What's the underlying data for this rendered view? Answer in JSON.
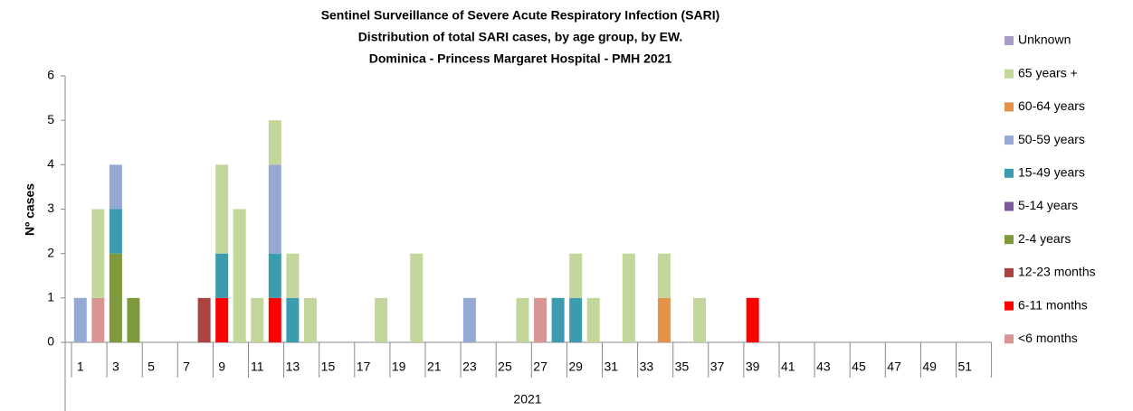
{
  "chart_data": {
    "type": "stacked_bar",
    "title": "Sentinel Surveillance of Severe Acute Respiratory Infection (SARI)",
    "subtitle": "Distribution of total SARI cases, by age group, by EW.",
    "subtitle2": "Dominica - Princess Margaret Hospital - PMH  2021",
    "ylabel": "Nº cases",
    "xlabel": "2021",
    "ylim": [
      0,
      6
    ],
    "yticks": [
      0,
      1,
      2,
      3,
      4,
      5,
      6
    ],
    "grid": false,
    "legend": "right",
    "categories": [
      1,
      null,
      3,
      null,
      5,
      null,
      7,
      null,
      9,
      null,
      11,
      null,
      13,
      null,
      15,
      null,
      17,
      null,
      19,
      null,
      21,
      null,
      23,
      null,
      25,
      null,
      27,
      null,
      29,
      null,
      31,
      null,
      33,
      null,
      35,
      null,
      37,
      null,
      39,
      null,
      41,
      null,
      43,
      null,
      45,
      null,
      47,
      null,
      49,
      null,
      51,
      null
    ],
    "series": [
      {
        "name": "<6 months",
        "color": "#d99594",
        "values": [
          0,
          1,
          0,
          0,
          0,
          0,
          0,
          0,
          0,
          0,
          0,
          0,
          0,
          0,
          0,
          0,
          0,
          0,
          0,
          0,
          0,
          0,
          0,
          0,
          0,
          0,
          1,
          0,
          0,
          0,
          0,
          0,
          0,
          0,
          0,
          0,
          0,
          0,
          0,
          0,
          0,
          0,
          0,
          0,
          0,
          0,
          0,
          0,
          0,
          0,
          0,
          0
        ]
      },
      {
        "name": "6-11 months",
        "color": "#ff0000",
        "values": [
          0,
          0,
          0,
          0,
          0,
          0,
          0,
          0,
          1,
          0,
          0,
          1,
          0,
          0,
          0,
          0,
          0,
          0,
          0,
          0,
          0,
          0,
          0,
          0,
          0,
          0,
          0,
          0,
          0,
          0,
          0,
          0,
          0,
          0,
          0,
          0,
          0,
          0,
          1,
          0,
          0,
          0,
          0,
          0,
          0,
          0,
          0,
          0,
          0,
          0,
          0,
          0
        ]
      },
      {
        "name": "12-23 months",
        "color": "#a94442",
        "values": [
          0,
          0,
          0,
          0,
          0,
          0,
          0,
          1,
          0,
          0,
          0,
          0,
          0,
          0,
          0,
          0,
          0,
          0,
          0,
          0,
          0,
          0,
          0,
          0,
          0,
          0,
          0,
          0,
          0,
          0,
          0,
          0,
          0,
          0,
          0,
          0,
          0,
          0,
          0,
          0,
          0,
          0,
          0,
          0,
          0,
          0,
          0,
          0,
          0,
          0,
          0,
          0
        ]
      },
      {
        "name": "2-4 years",
        "color": "#7f9a3c",
        "values": [
          0,
          0,
          2,
          1,
          0,
          0,
          0,
          0,
          0,
          0,
          0,
          0,
          0,
          0,
          0,
          0,
          0,
          0,
          0,
          0,
          0,
          0,
          0,
          0,
          0,
          0,
          0,
          0,
          0,
          0,
          0,
          0,
          0,
          0,
          0,
          0,
          0,
          0,
          0,
          0,
          0,
          0,
          0,
          0,
          0,
          0,
          0,
          0,
          0,
          0,
          0,
          0
        ]
      },
      {
        "name": "5-14 years",
        "color": "#7a5a9a",
        "values": [
          0,
          0,
          0,
          0,
          0,
          0,
          0,
          0,
          0,
          0,
          0,
          0,
          0,
          0,
          0,
          0,
          0,
          0,
          0,
          0,
          0,
          0,
          0,
          0,
          0,
          0,
          0,
          0,
          0,
          0,
          0,
          0,
          0,
          0,
          0,
          0,
          0,
          0,
          0,
          0,
          0,
          0,
          0,
          0,
          0,
          0,
          0,
          0,
          0,
          0,
          0,
          0
        ]
      },
      {
        "name": "15-49 years",
        "color": "#3b9cb0",
        "values": [
          0,
          0,
          1,
          0,
          0,
          0,
          0,
          0,
          1,
          0,
          0,
          1,
          1,
          0,
          0,
          0,
          0,
          0,
          0,
          0,
          0,
          0,
          0,
          0,
          0,
          0,
          0,
          1,
          1,
          0,
          0,
          0,
          0,
          0,
          0,
          0,
          0,
          0,
          0,
          0,
          0,
          0,
          0,
          0,
          0,
          0,
          0,
          0,
          0,
          0,
          0,
          0
        ]
      },
      {
        "name": "50-59 years",
        "color": "#95a9d4",
        "values": [
          1,
          0,
          1,
          0,
          0,
          0,
          0,
          0,
          0,
          0,
          0,
          2,
          0,
          0,
          0,
          0,
          0,
          0,
          0,
          0,
          0,
          0,
          1,
          0,
          0,
          0,
          0,
          0,
          0,
          0,
          0,
          0,
          0,
          0,
          0,
          0,
          0,
          0,
          0,
          0,
          0,
          0,
          0,
          0,
          0,
          0,
          0,
          0,
          0,
          0,
          0,
          0
        ]
      },
      {
        "name": "60-64 years",
        "color": "#e4914a",
        "values": [
          0,
          0,
          0,
          0,
          0,
          0,
          0,
          0,
          0,
          0,
          0,
          0,
          0,
          0,
          0,
          0,
          0,
          0,
          0,
          0,
          0,
          0,
          0,
          0,
          0,
          0,
          0,
          0,
          0,
          0,
          0,
          0,
          0,
          1,
          0,
          0,
          0,
          0,
          0,
          0,
          0,
          0,
          0,
          0,
          0,
          0,
          0,
          0,
          0,
          0,
          0,
          0
        ]
      },
      {
        "name": "65 years +",
        "color": "#c3d69b",
        "values": [
          0,
          2,
          0,
          0,
          0,
          0,
          0,
          0,
          2,
          3,
          1,
          1,
          1,
          1,
          0,
          0,
          0,
          1,
          0,
          2,
          0,
          0,
          0,
          0,
          0,
          1,
          0,
          0,
          1,
          1,
          0,
          2,
          0,
          1,
          0,
          1,
          0,
          0,
          0,
          0,
          0,
          0,
          0,
          0,
          0,
          0,
          0,
          0,
          0,
          0,
          0,
          0
        ]
      },
      {
        "name": "Unknown",
        "color": "#a89cc8",
        "values": [
          0,
          0,
          0,
          0,
          0,
          0,
          0,
          0,
          0,
          0,
          0,
          0,
          0,
          0,
          0,
          0,
          0,
          0,
          0,
          0,
          0,
          0,
          0,
          0,
          0,
          0,
          0,
          0,
          0,
          0,
          0,
          0,
          0,
          0,
          0,
          0,
          0,
          0,
          0,
          0,
          0,
          0,
          0,
          0,
          0,
          0,
          0,
          0,
          0,
          0,
          0,
          0
        ]
      }
    ]
  }
}
